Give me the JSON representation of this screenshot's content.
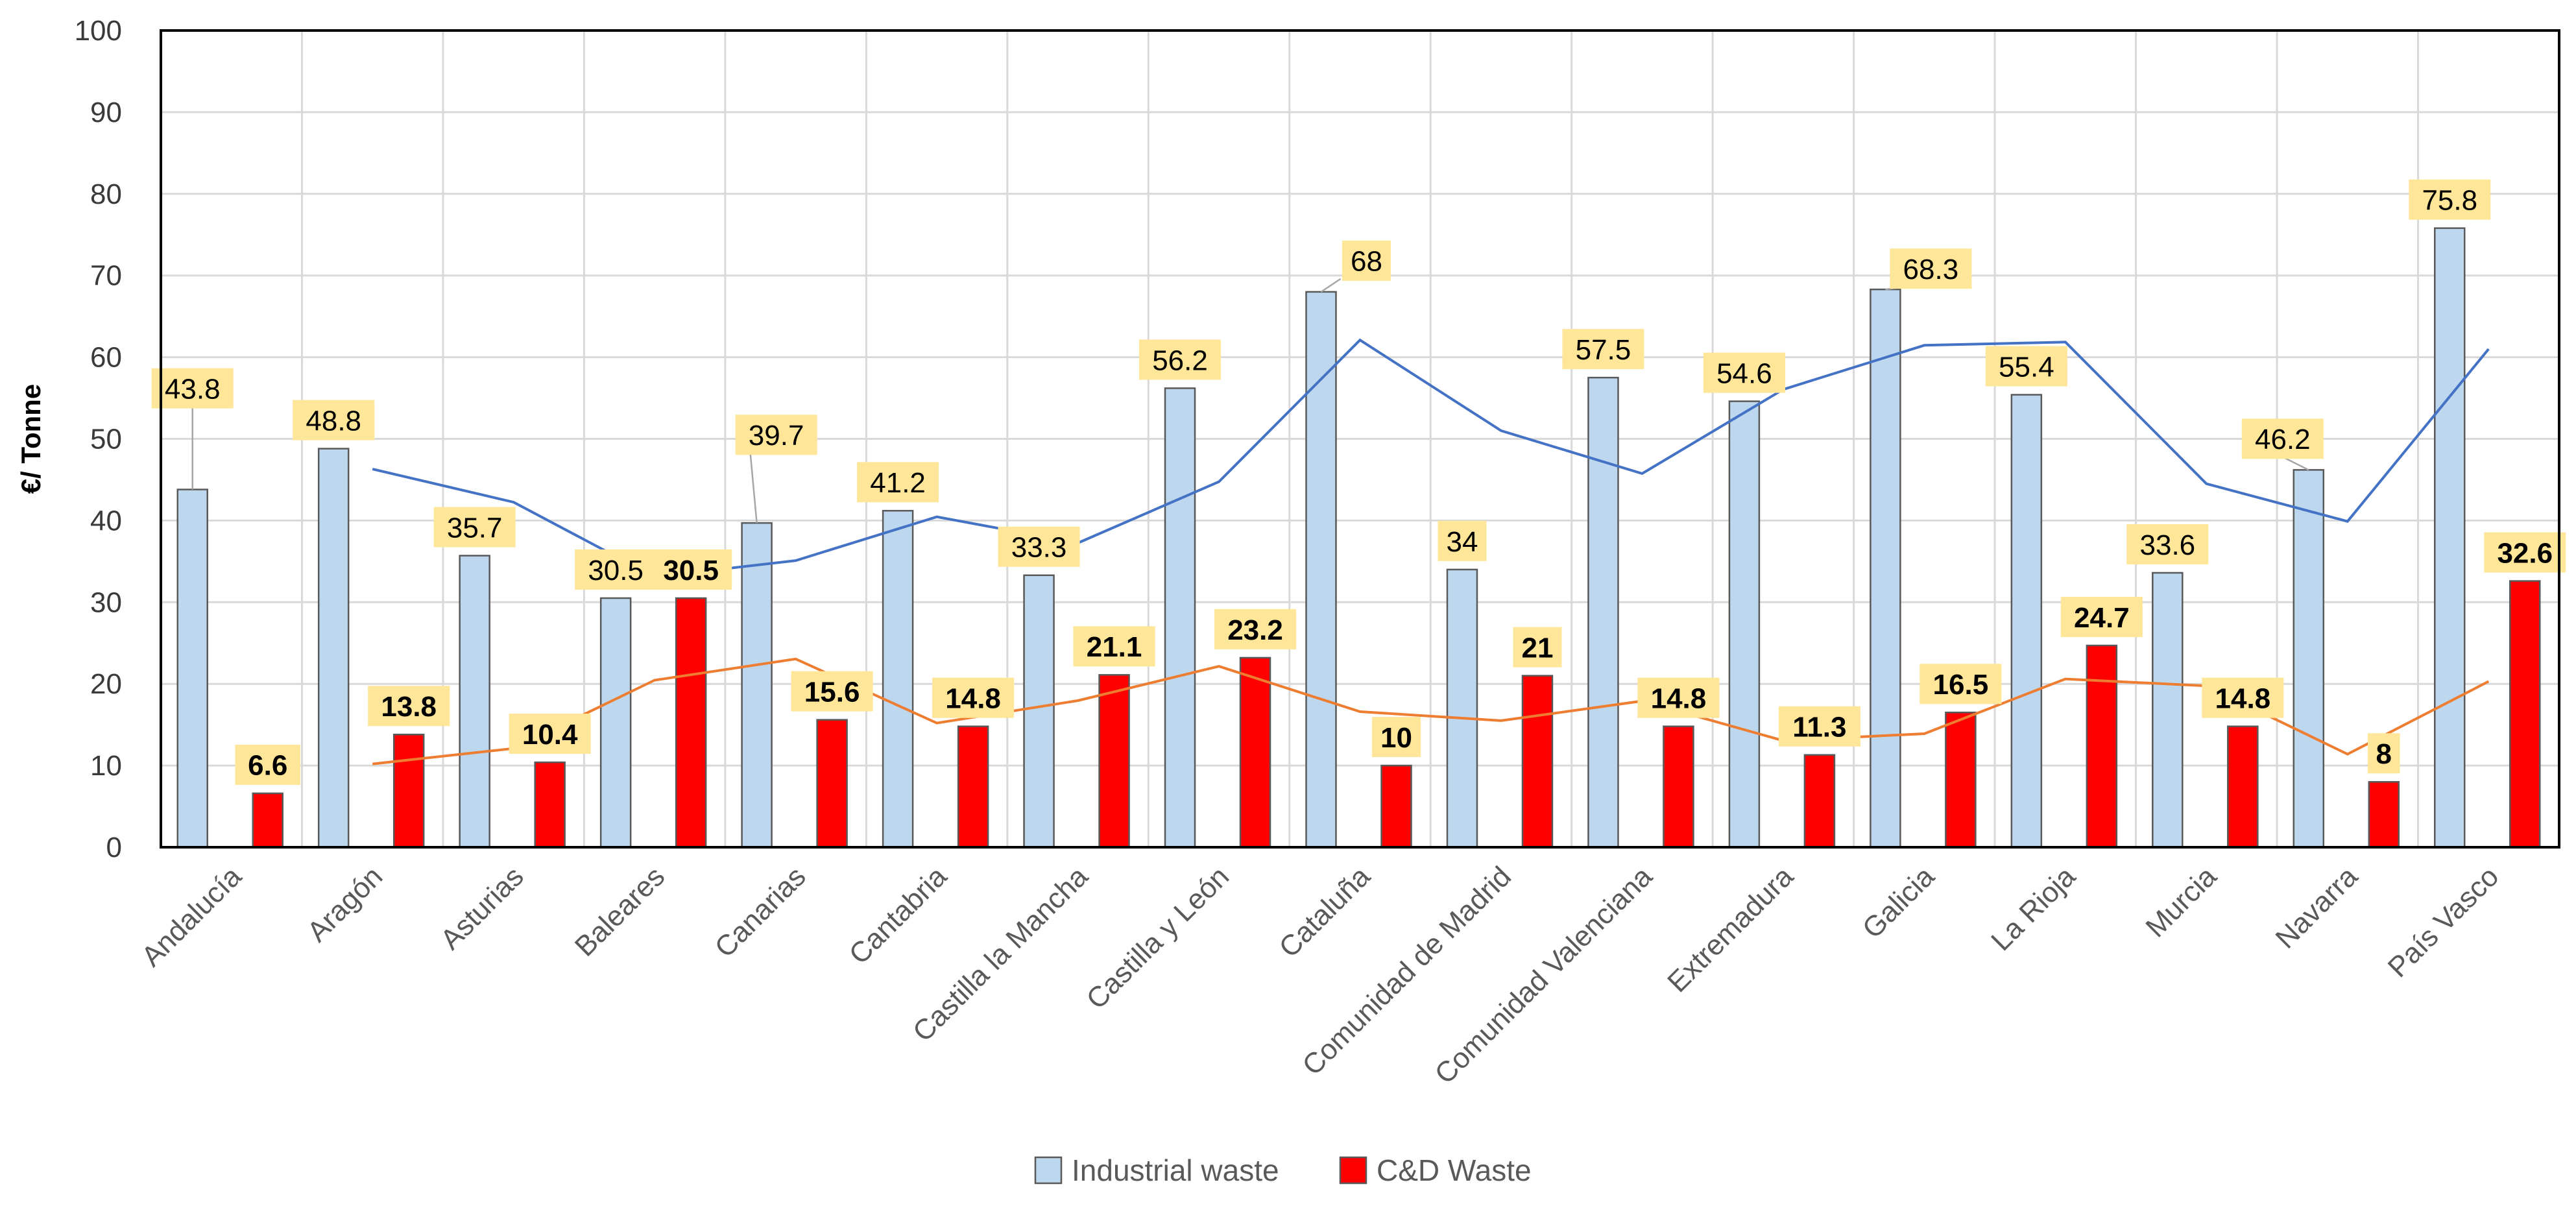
{
  "chart_data": {
    "type": "bar",
    "title": "",
    "xlabel": "",
    "ylabel": "€/ Tonne",
    "ylim": [
      0,
      100
    ],
    "yticks": [
      0,
      10,
      20,
      30,
      40,
      50,
      60,
      70,
      80,
      90,
      100
    ],
    "grid": true,
    "legend_position": "bottom",
    "categories": [
      "Andalucía",
      "Aragón",
      "Asturias",
      "Baleares",
      "Canarias",
      "Cantabria",
      "Castilla la Mancha",
      "Castilla y León",
      "Cataluña",
      "Comunidad de Madrid",
      "Comunidad Valenciana",
      "Extremadura",
      "Galicia",
      "La Rioja",
      "Murcia",
      "Navarra",
      "País Vasco"
    ],
    "series": [
      {
        "name": "Industrial waste",
        "color": "#BDD7EE",
        "edge": "#595959",
        "values": [
          43.8,
          48.8,
          35.7,
          30.5,
          39.7,
          41.2,
          33.3,
          56.2,
          68,
          34,
          57.5,
          54.6,
          68.3,
          55.4,
          33.6,
          46.2,
          75.8
        ]
      },
      {
        "name": "C&D Waste",
        "color": "#FF0000",
        "edge": "#595959",
        "values": [
          6.6,
          13.8,
          10.4,
          30.5,
          15.6,
          14.8,
          21.1,
          23.2,
          10,
          21,
          14.8,
          11.3,
          16.5,
          24.7,
          14.8,
          8,
          32.6
        ]
      }
    ],
    "trendlines": [
      {
        "name": "Industrial waste moving average",
        "color": "#4472C4",
        "values": [
          null,
          46.3,
          42.25,
          33.1,
          35.1,
          40.45,
          37.25,
          44.75,
          62.1,
          51,
          45.75,
          56.05,
          61.45,
          61.85,
          44.5,
          39.9,
          61
        ]
      },
      {
        "name": "C&D Waste moving average",
        "color": "#ED7D31",
        "values": [
          null,
          10.2,
          12.1,
          20.45,
          23.05,
          15.2,
          17.95,
          22.15,
          16.6,
          15.5,
          17.9,
          13.05,
          13.9,
          20.6,
          19.75,
          11.4,
          20.3
        ]
      }
    ],
    "label_color": "#FFE699"
  }
}
